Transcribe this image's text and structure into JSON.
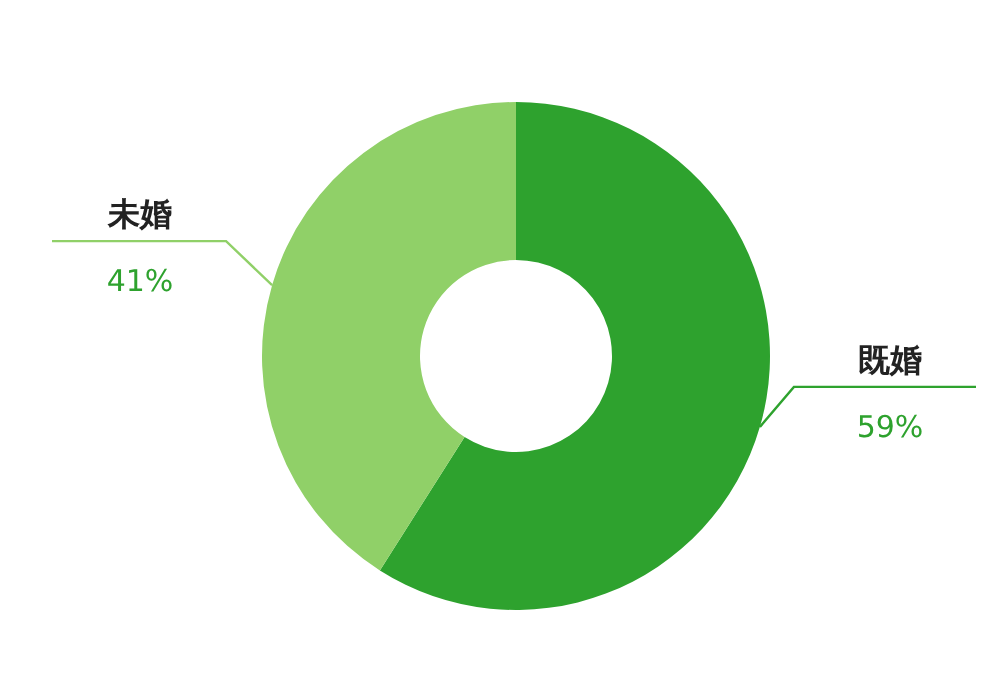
{
  "chart_data": {
    "type": "donut",
    "categories": [
      "既婚",
      "未婚"
    ],
    "values": [
      59,
      41
    ],
    "colors": [
      "#2ea22e",
      "#90d068"
    ],
    "value_labels": [
      "59%",
      "41%"
    ],
    "legend": false
  }
}
